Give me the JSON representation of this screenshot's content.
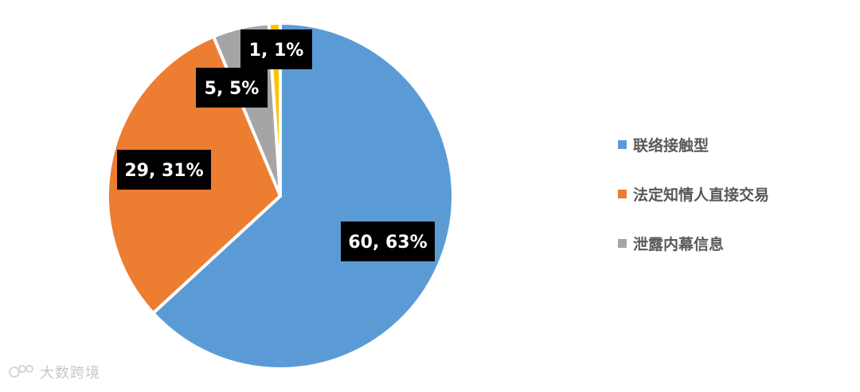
{
  "chart_data": {
    "type": "pie",
    "categories": [
      "联络接触型",
      "法定知情人直接交易",
      "泄露内幕信息",
      ""
    ],
    "values": [
      60,
      29,
      5,
      1
    ],
    "percent_labels": [
      "63%",
      "31%",
      "5%",
      "1%"
    ],
    "data_labels": [
      "60, 63%",
      "29, 31%",
      "5, 5%",
      "1, 1%"
    ],
    "colors": [
      "#5B9BD5",
      "#ED7D31",
      "#A5A5A5",
      "#FFC000"
    ],
    "start_angle_deg": 0,
    "direction": "clockwise",
    "legend_position": "right",
    "title": ""
  },
  "legend": {
    "items": [
      {
        "label": "联络接触型",
        "color": "#5B9BD5"
      },
      {
        "label": "法定知情人直接交易",
        "color": "#ED7D31"
      },
      {
        "label": "泄露内幕信息",
        "color": "#A5A5A5"
      }
    ]
  },
  "watermark": {
    "text": "大数跨境"
  }
}
